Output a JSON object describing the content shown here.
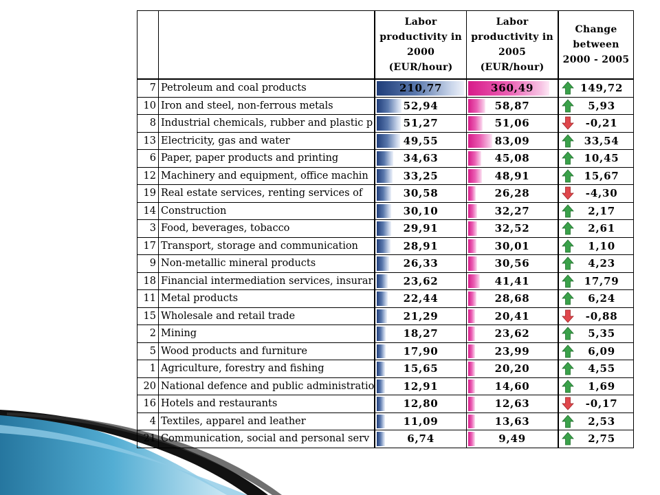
{
  "header": {
    "col_2000": [
      "Labor",
      "productivity in",
      "2000",
      "(EUR/hour)"
    ],
    "col_2005": [
      "Labor",
      "productivity in",
      "2005",
      "(EUR/hour)"
    ],
    "col_change": [
      "Change",
      "between",
      "2000 - 2005"
    ]
  },
  "colors": {
    "bar_2000": "#1f3d7a",
    "bar_2005": "#d81b8a",
    "arrow_up": "#3aa14a",
    "arrow_down": "#e0474c"
  },
  "rows": [
    {
      "id": "7",
      "name": "Petroleum and coal products",
      "v2000": "210,77",
      "v2005": "360,49",
      "change": "149,72",
      "dir": "up",
      "f2000": 210.77,
      "f2005": 360.49
    },
    {
      "id": "10",
      "name": "Iron and steel, non-ferrous metals",
      "v2000": "52,94",
      "v2005": "58,87",
      "change": "5,93",
      "dir": "up",
      "f2000": 52.94,
      "f2005": 58.87
    },
    {
      "id": "8",
      "name": "Industrial chemicals, rubber and plastic p",
      "v2000": "51,27",
      "v2005": "51,06",
      "change": "-0,21",
      "dir": "down",
      "f2000": 51.27,
      "f2005": 51.06
    },
    {
      "id": "13",
      "name": "Electricity, gas and water",
      "v2000": "49,55",
      "v2005": "83,09",
      "change": "33,54",
      "dir": "up",
      "f2000": 49.55,
      "f2005": 83.09
    },
    {
      "id": "6",
      "name": "Paper, paper products and printing",
      "v2000": "34,63",
      "v2005": "45,08",
      "change": "10,45",
      "dir": "up",
      "f2000": 34.63,
      "f2005": 45.08
    },
    {
      "id": "12",
      "name": "Machinery and equipment, office machin",
      "v2000": "33,25",
      "v2005": "48,91",
      "change": "15,67",
      "dir": "up",
      "f2000": 33.25,
      "f2005": 48.91
    },
    {
      "id": "19",
      "name": "Real estate services, renting services of",
      "v2000": "30,58",
      "v2005": "26,28",
      "change": "-4,30",
      "dir": "down",
      "f2000": 30.58,
      "f2005": 26.28
    },
    {
      "id": "14",
      "name": "Construction",
      "v2000": "30,10",
      "v2005": "32,27",
      "change": "2,17",
      "dir": "up",
      "f2000": 30.1,
      "f2005": 32.27
    },
    {
      "id": "3",
      "name": "Food, beverages, tobacco",
      "v2000": "29,91",
      "v2005": "32,52",
      "change": "2,61",
      "dir": "up",
      "f2000": 29.91,
      "f2005": 32.52
    },
    {
      "id": "17",
      "name": "Transport, storage and communication",
      "v2000": "28,91",
      "v2005": "30,01",
      "change": "1,10",
      "dir": "up",
      "f2000": 28.91,
      "f2005": 30.01
    },
    {
      "id": "9",
      "name": "Non-metallic mineral products",
      "v2000": "26,33",
      "v2005": "30,56",
      "change": "4,23",
      "dir": "up",
      "f2000": 26.33,
      "f2005": 30.56
    },
    {
      "id": "18",
      "name": "Financial intermediation services, insurar",
      "v2000": "23,62",
      "v2005": "41,41",
      "change": "17,79",
      "dir": "up",
      "f2000": 23.62,
      "f2005": 41.41
    },
    {
      "id": "11",
      "name": "Metal products",
      "v2000": "22,44",
      "v2005": "28,68",
      "change": "6,24",
      "dir": "up",
      "f2000": 22.44,
      "f2005": 28.68
    },
    {
      "id": "15",
      "name": "Wholesale and retail trade",
      "v2000": "21,29",
      "v2005": "20,41",
      "change": "-0,88",
      "dir": "down",
      "f2000": 21.29,
      "f2005": 20.41
    },
    {
      "id": "2",
      "name": "Mining",
      "v2000": "18,27",
      "v2005": "23,62",
      "change": "5,35",
      "dir": "up",
      "f2000": 18.27,
      "f2005": 23.62
    },
    {
      "id": "5",
      "name": "Wood products and furniture",
      "v2000": "17,90",
      "v2005": "23,99",
      "change": "6,09",
      "dir": "up",
      "f2000": 17.9,
      "f2005": 23.99
    },
    {
      "id": "1",
      "name": "Agriculture, forestry and fishing",
      "v2000": "15,65",
      "v2005": "20,20",
      "change": "4,55",
      "dir": "up",
      "f2000": 15.65,
      "f2005": 20.2
    },
    {
      "id": "20",
      "name": "National defence and public administratio",
      "v2000": "12,91",
      "v2005": "14,60",
      "change": "1,69",
      "dir": "up",
      "f2000": 12.91,
      "f2005": 14.6
    },
    {
      "id": "16",
      "name": "Hotels and restaurants",
      "v2000": "12,80",
      "v2005": "12,63",
      "change": "-0,17",
      "dir": "down",
      "f2000": 12.8,
      "f2005": 12.63
    },
    {
      "id": "4",
      "name": "Textiles, apparel and leather",
      "v2000": "11,09",
      "v2005": "13,63",
      "change": "2,53",
      "dir": "up",
      "f2000": 11.09,
      "f2005": 13.63
    },
    {
      "id": "21",
      "name": "Communication, social and personal serv",
      "v2000": "6,74",
      "v2005": "9,49",
      "change": "2,75",
      "dir": "up",
      "f2000": 6.74,
      "f2005": 9.49
    }
  ]
}
